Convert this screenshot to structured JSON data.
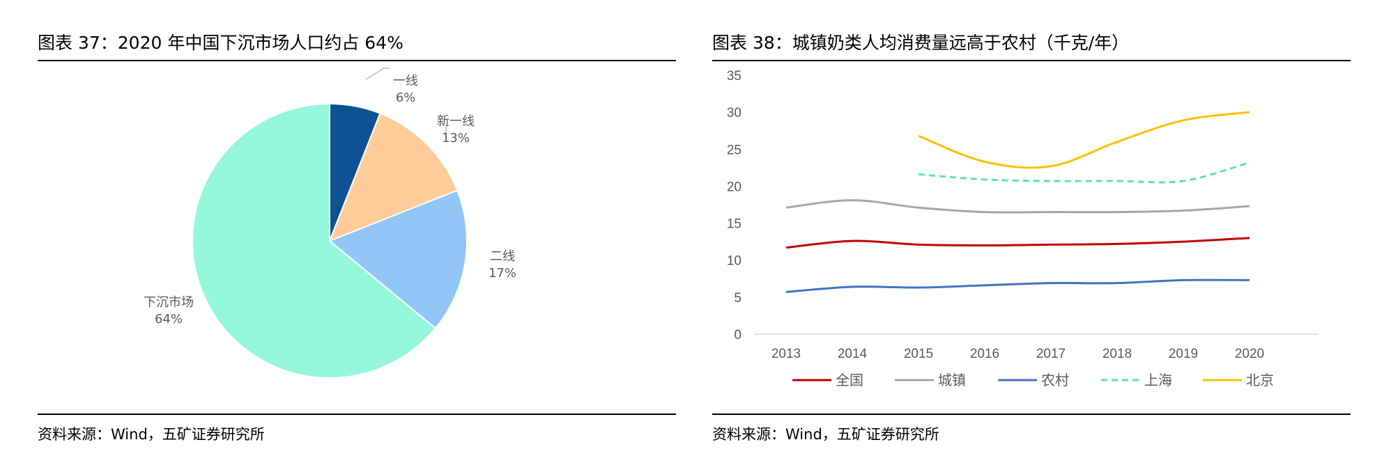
{
  "left": {
    "title": "图表 37：2020 年中国下沉市场人口约占 64%",
    "source": "资料来源：Wind，五矿证券研究所"
  },
  "right": {
    "title": "图表 38：城镇奶类人均消费量远高于农村（千克/年）",
    "source": "资料来源：Wind，五矿证券研究所"
  },
  "chart_data": [
    {
      "type": "pie",
      "title": "图表 37：2020 年中国下沉市场人口约占 64%",
      "slices": [
        {
          "label": "一线",
          "value": 6,
          "value_label": "6%",
          "color": "#0e5294"
        },
        {
          "label": "新一线",
          "value": 13,
          "value_label": "13%",
          "color": "#ffcc99"
        },
        {
          "label": "二线",
          "value": 17,
          "value_label": "17%",
          "color": "#92c6f6"
        },
        {
          "label": "下沉市场",
          "value": 64,
          "value_label": "64%",
          "color": "#95f7da"
        }
      ]
    },
    {
      "type": "line",
      "title": "图表 38：城镇奶类人均消费量远高于农村（千克/年）",
      "x": [
        "2013",
        "2014",
        "2015",
        "2016",
        "2017",
        "2018",
        "2019",
        "2020"
      ],
      "ylim": [
        0,
        35
      ],
      "yticks": [
        "0",
        "5",
        "10",
        "15",
        "20",
        "25",
        "30",
        "35"
      ],
      "grid": false,
      "legend_position": "bottom",
      "series": [
        {
          "name": "全国",
          "color": "#c00000",
          "dash": false,
          "values": [
            11.7,
            12.6,
            12.1,
            12.0,
            12.1,
            12.2,
            12.5,
            13.0
          ]
        },
        {
          "name": "城镇",
          "color": "#a6a6a6",
          "dash": false,
          "values": [
            17.1,
            18.1,
            17.1,
            16.5,
            16.5,
            16.5,
            16.7,
            17.3
          ]
        },
        {
          "name": "农村",
          "color": "#4472c4",
          "dash": false,
          "values": [
            5.7,
            6.4,
            6.3,
            6.6,
            6.9,
            6.9,
            7.3,
            7.3
          ]
        },
        {
          "name": "上海",
          "color": "#5de2b4",
          "dash": true,
          "values": [
            null,
            null,
            21.6,
            20.9,
            20.7,
            20.7,
            20.7,
            23.2
          ]
        },
        {
          "name": "北京",
          "color": "#ffc000",
          "dash": false,
          "values": [
            null,
            null,
            26.8,
            23.3,
            22.7,
            26.0,
            28.9,
            30.0
          ]
        }
      ]
    }
  ]
}
